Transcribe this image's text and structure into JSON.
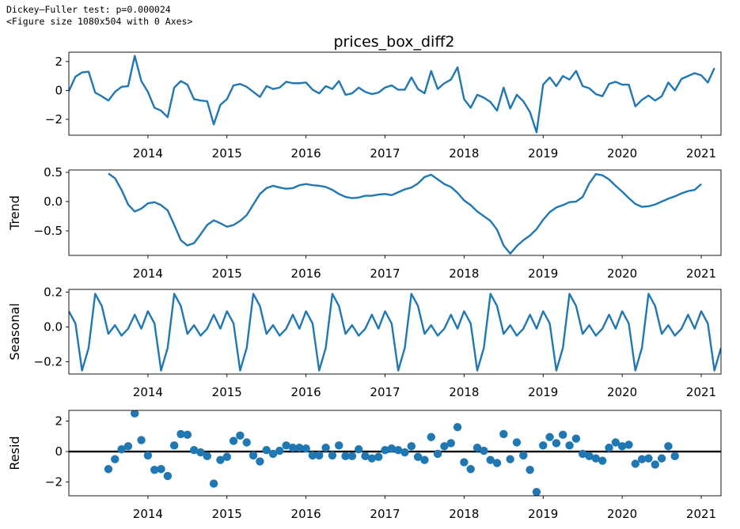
{
  "console": {
    "line1": "Dickey–Fuller test: p=0.000024",
    "line2": "<Figure size 1080x504 with 0 Axes>"
  },
  "colors": {
    "series": "#1f77b4",
    "zero_line": "#000000",
    "axes": "#000000"
  },
  "chart_data": [
    {
      "type": "line",
      "title": "prices_box_diff2",
      "ylabel": "",
      "xlim": [
        2013.0,
        2021.25
      ],
      "ylim": [
        -3.1,
        2.65
      ],
      "yticks": [
        2,
        0,
        -2
      ],
      "ytick_labels": [
        "2",
        "0",
        "−2"
      ],
      "xticks": [
        2014,
        2015,
        2016,
        2017,
        2018,
        2019,
        2020,
        2021
      ],
      "xtick_labels": [
        "2014",
        "2015",
        "2016",
        "2017",
        "2018",
        "2019",
        "2020",
        "2021"
      ],
      "series": [
        {
          "start": 2013.0,
          "step_months": 1,
          "values": [
            -0.05,
            0.95,
            1.25,
            1.3,
            -0.15,
            -0.4,
            -0.7,
            -0.1,
            0.25,
            0.3,
            2.4,
            0.65,
            -0.1,
            -1.2,
            -1.4,
            -1.85,
            0.2,
            0.65,
            0.4,
            -0.6,
            -0.7,
            -0.75,
            -2.35,
            -1.0,
            -0.6,
            0.35,
            0.45,
            0.25,
            -0.1,
            -0.45,
            0.3,
            0.1,
            0.2,
            0.6,
            0.5,
            0.5,
            0.55,
            0.05,
            -0.2,
            0.3,
            0.1,
            0.65,
            -0.3,
            -0.2,
            0.2,
            -0.1,
            -0.25,
            -0.15,
            0.2,
            0.35,
            0.05,
            0.05,
            0.9,
            0.1,
            -0.2,
            1.35,
            0.1,
            0.5,
            0.75,
            1.6,
            -0.6,
            -1.2,
            -0.3,
            -0.5,
            -0.8,
            -1.4,
            0.2,
            -1.25,
            -0.3,
            -0.75,
            -1.5,
            -2.9,
            0.4,
            0.9,
            0.3,
            1.0,
            0.75,
            1.35,
            0.3,
            0.15,
            -0.25,
            -0.4,
            0.45,
            0.6,
            0.4,
            0.4,
            -1.1,
            -0.65,
            -0.35,
            -0.7,
            -0.4,
            0.55,
            0.0,
            0.8,
            1.0,
            1.2,
            1.05,
            0.55,
            1.55
          ]
        }
      ]
    },
    {
      "type": "line",
      "title": "",
      "ylabel": "Trend",
      "xlim": [
        2013.0,
        2021.25
      ],
      "ylim": [
        -0.92,
        0.54
      ],
      "yticks": [
        0.5,
        0.0,
        -0.5
      ],
      "ytick_labels": [
        "0.5",
        "0.0",
        "−0.5"
      ],
      "xticks": [
        2014,
        2015,
        2016,
        2017,
        2018,
        2019,
        2020,
        2021
      ],
      "xtick_labels": [
        "2014",
        "2015",
        "2016",
        "2017",
        "2018",
        "2019",
        "2020",
        "2021"
      ],
      "series": [
        {
          "start": 2013.5,
          "step_months": 1,
          "values": [
            0.48,
            0.4,
            0.2,
            -0.05,
            -0.17,
            -0.12,
            -0.03,
            -0.01,
            -0.06,
            -0.15,
            -0.4,
            -0.66,
            -0.75,
            -0.71,
            -0.56,
            -0.4,
            -0.32,
            -0.37,
            -0.43,
            -0.4,
            -0.33,
            -0.23,
            -0.05,
            0.13,
            0.23,
            0.27,
            0.24,
            0.22,
            0.23,
            0.28,
            0.3,
            0.28,
            0.27,
            0.25,
            0.2,
            0.13,
            0.08,
            0.06,
            0.07,
            0.1,
            0.1,
            0.12,
            0.13,
            0.11,
            0.16,
            0.21,
            0.24,
            0.31,
            0.42,
            0.46,
            0.38,
            0.3,
            0.25,
            0.15,
            0.02,
            -0.06,
            -0.17,
            -0.25,
            -0.33,
            -0.48,
            -0.75,
            -0.89,
            -0.76,
            -0.66,
            -0.58,
            -0.47,
            -0.31,
            -0.18,
            -0.1,
            -0.06,
            -0.01,
            0.0,
            0.08,
            0.31,
            0.47,
            0.45,
            0.38,
            0.27,
            0.17,
            0.06,
            -0.04,
            -0.09,
            -0.08,
            -0.05,
            0.0,
            0.05,
            0.09,
            0.14,
            0.18,
            0.2,
            0.3
          ]
        }
      ]
    },
    {
      "type": "line",
      "title": "",
      "ylabel": "Seasonal",
      "xlim": [
        2013.0,
        2021.25
      ],
      "ylim": [
        -0.27,
        0.215
      ],
      "yticks": [
        0.2,
        0.0,
        -0.2
      ],
      "ytick_labels": [
        "0.2",
        "0.0",
        "−0.2"
      ],
      "xticks": [
        2014,
        2015,
        2016,
        2017,
        2018,
        2019,
        2020,
        2021
      ],
      "xtick_labels": [
        "2014",
        "2015",
        "2016",
        "2017",
        "2018",
        "2019",
        "2020",
        "2021"
      ],
      "series": [
        {
          "start": 2013.0,
          "step_months": 1,
          "period": 12,
          "values": [
            0.09,
            0.02,
            -0.25,
            -0.12,
            0.19,
            0.12,
            -0.04,
            0.01,
            -0.05,
            -0.01,
            0.07,
            -0.01
          ]
        }
      ]
    },
    {
      "type": "scatter",
      "title": "",
      "ylabel": "Resid",
      "xlim": [
        2013.0,
        2021.25
      ],
      "ylim": [
        -2.9,
        2.7
      ],
      "yticks": [
        2,
        0,
        -2
      ],
      "ytick_labels": [
        "2",
        "0",
        "−2"
      ],
      "xticks": [
        2014,
        2015,
        2016,
        2017,
        2018,
        2019,
        2020,
        2021
      ],
      "xtick_labels": [
        "2014",
        "2015",
        "2016",
        "2017",
        "2018",
        "2019",
        "2020",
        "2021"
      ],
      "zero_line": true,
      "series": [
        {
          "start": 2013.5,
          "step_months": 1,
          "values": [
            -1.15,
            -0.5,
            0.15,
            0.35,
            2.5,
            0.75,
            -0.25,
            -1.2,
            -1.15,
            -1.6,
            0.4,
            1.15,
            1.1,
            0.1,
            -0.05,
            -0.3,
            -2.1,
            -0.55,
            -0.35,
            0.7,
            1.05,
            0.6,
            -0.25,
            -0.65,
            0.1,
            -0.15,
            0.05,
            0.4,
            0.25,
            0.25,
            0.2,
            -0.25,
            -0.25,
            0.25,
            -0.25,
            0.4,
            -0.3,
            -0.3,
            0.15,
            -0.3,
            -0.45,
            -0.35,
            0.1,
            0.2,
            0.1,
            -0.05,
            0.35,
            -0.35,
            -0.55,
            0.95,
            -0.15,
            0.35,
            0.55,
            1.6,
            -0.7,
            -1.15,
            0.25,
            0.05,
            -0.55,
            -0.75,
            1.15,
            -0.5,
            0.6,
            -0.25,
            -1.2,
            -2.65,
            0.4,
            0.95,
            0.55,
            1.1,
            0.4,
            0.85,
            -0.15,
            -0.3,
            -0.45,
            -0.6,
            0.25,
            0.6,
            0.35,
            0.45,
            -0.8,
            -0.5,
            -0.45,
            -0.85,
            -0.45,
            0.35,
            -0.3
          ]
        }
      ]
    }
  ]
}
